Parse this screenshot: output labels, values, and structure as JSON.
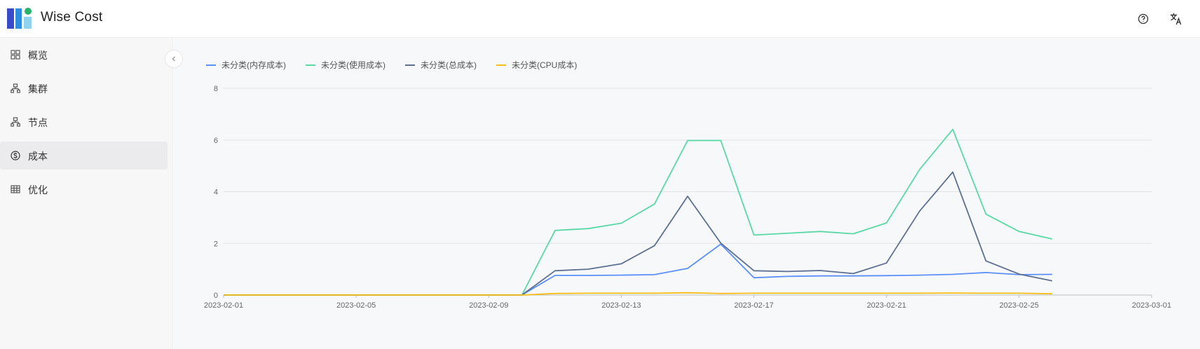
{
  "header": {
    "brand": "Wise Cost",
    "help_icon": "help-circle-icon",
    "lang_icon": "translate-icon"
  },
  "colors": {
    "logo_dark": "#3b4bc8",
    "logo_blue": "#2f8ee0",
    "logo_green": "#27b36b",
    "logo_light": "#8fd3ee"
  },
  "sidebar": {
    "items": [
      {
        "label": "概览",
        "icon": "grid-icon",
        "active": false
      },
      {
        "label": "集群",
        "icon": "cluster-icon",
        "active": false
      },
      {
        "label": "节点",
        "icon": "node-icon",
        "active": false
      },
      {
        "label": "成本",
        "icon": "dollar-icon",
        "active": true
      },
      {
        "label": "优化",
        "icon": "table-icon",
        "active": false
      }
    ]
  },
  "chart_data": {
    "type": "line",
    "title": "",
    "xlabel": "",
    "ylabel": "",
    "ylim": [
      0,
      8
    ],
    "yticks": [
      0,
      2,
      4,
      6,
      8
    ],
    "xlim": [
      "2023-02-01",
      "2023-03-01"
    ],
    "xticks": [
      "2023-02-01",
      "2023-02-05",
      "2023-02-09",
      "2023-02-13",
      "2023-02-17",
      "2023-02-21",
      "2023-02-25",
      "2023-03-01"
    ],
    "grid": true,
    "legend_position": "top-left",
    "x": [
      "2023-02-01",
      "2023-02-02",
      "2023-02-03",
      "2023-02-04",
      "2023-02-05",
      "2023-02-06",
      "2023-02-07",
      "2023-02-08",
      "2023-02-09",
      "2023-02-10",
      "2023-02-11",
      "2023-02-12",
      "2023-02-13",
      "2023-02-14",
      "2023-02-15",
      "2023-02-16",
      "2023-02-17",
      "2023-02-18",
      "2023-02-19",
      "2023-02-20",
      "2023-02-21",
      "2023-02-22",
      "2023-02-23",
      "2023-02-24",
      "2023-02-25",
      "2023-02-26"
    ],
    "series": [
      {
        "name": "未分类(内存成本)",
        "color": "#5b8ff9",
        "values": [
          0,
          0,
          0,
          0,
          0,
          0,
          0,
          0,
          0,
          0,
          0.76,
          0.76,
          0.77,
          0.79,
          1.03,
          1.97,
          0.67,
          0.72,
          0.74,
          0.74,
          0.75,
          0.77,
          0.8,
          0.87,
          0.79,
          0.8
        ]
      },
      {
        "name": "未分类(使用成本)",
        "color": "#5ad8a6",
        "values": [
          0,
          0,
          0,
          0,
          0,
          0,
          0,
          0,
          0,
          0,
          2.5,
          2.57,
          2.78,
          3.52,
          5.98,
          5.98,
          2.32,
          2.39,
          2.46,
          2.37,
          2.79,
          4.86,
          6.41,
          3.13,
          2.46,
          2.17
        ]
      },
      {
        "name": "未分类(总成本)",
        "color": "#5d7092",
        "values": [
          0,
          0,
          0,
          0,
          0,
          0,
          0,
          0,
          0,
          0,
          0.94,
          1.0,
          1.21,
          1.91,
          3.82,
          2.01,
          0.94,
          0.91,
          0.95,
          0.83,
          1.24,
          3.25,
          4.76,
          1.32,
          0.81,
          0.55
        ]
      },
      {
        "name": "未分类(CPU成本)",
        "color": "#f6bd16",
        "values": [
          0,
          0,
          0,
          0,
          0,
          0,
          0,
          0,
          0,
          0,
          0.06,
          0.07,
          0.07,
          0.07,
          0.09,
          0.06,
          0.07,
          0.07,
          0.07,
          0.07,
          0.07,
          0.07,
          0.08,
          0.07,
          0.07,
          0.05
        ]
      }
    ]
  }
}
